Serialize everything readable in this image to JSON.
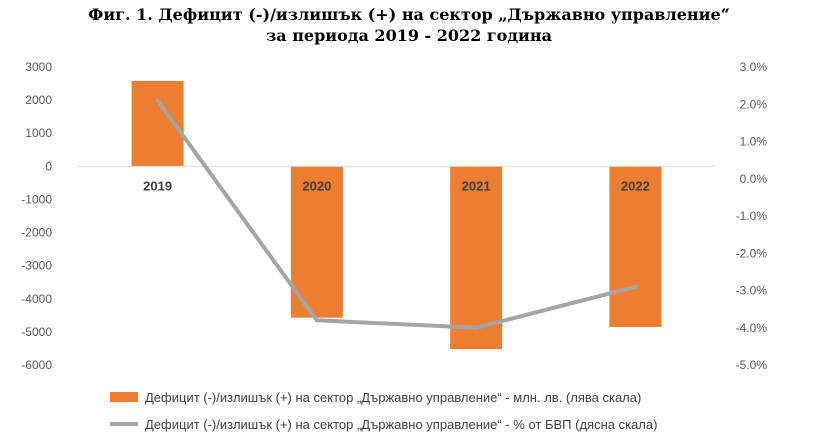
{
  "title_line1": "Фиг. 1. Дефицит (-)/излишък (+) на сектор „Държавно управление“",
  "title_line2": "за периода 2019 - 2022 година",
  "chart_data": {
    "type": "bar",
    "categories": [
      "2019",
      "2020",
      "2021",
      "2022"
    ],
    "series": [
      {
        "name": "Дефицит (-)/излишък (+) на сектор „Държавно управление“ - млн. лв. (лява скала)",
        "type": "bar",
        "axis": "left",
        "values": [
          2580,
          -4570,
          -5520,
          -4850
        ],
        "color": "#ED7D31"
      },
      {
        "name": "Дефицит (-)/излишък (+) на сектор „Държавно управление“ - % от БВП (дясна скала)",
        "type": "line",
        "axis": "right",
        "values": [
          2.1,
          -3.8,
          -4.0,
          -2.9
        ],
        "color": "#A5A5A5"
      }
    ],
    "y_left": {
      "ylim": [
        -6000,
        3000
      ],
      "ticks": [
        "3000",
        "2000",
        "1000",
        "0",
        "-1000",
        "-2000",
        "-3000",
        "-4000",
        "-5000",
        "-6000"
      ]
    },
    "y_right": {
      "ylim": [
        -5,
        3
      ],
      "ticks": [
        "3.0%",
        "2.0%",
        "1.0%",
        "0.0%",
        "-1.0%",
        "-2.0%",
        "-3.0%",
        "-4.0%",
        "-5.0%"
      ]
    },
    "grid": false,
    "legend_position": "bottom"
  }
}
